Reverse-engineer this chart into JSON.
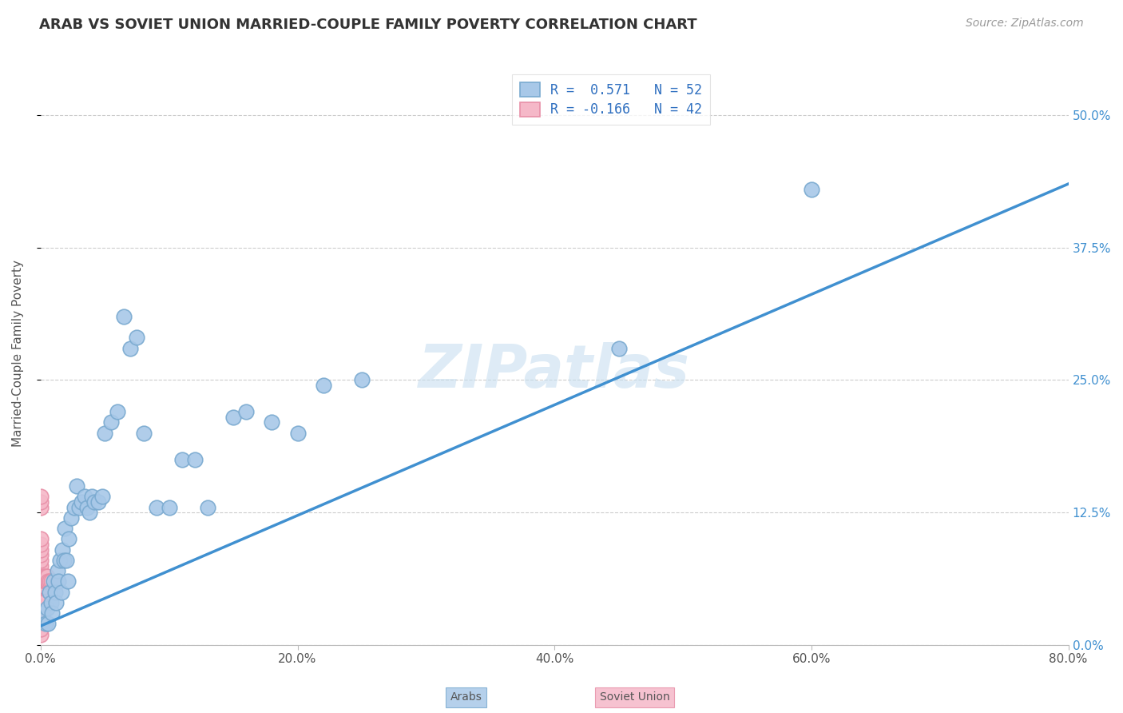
{
  "title": "ARAB VS SOVIET UNION MARRIED-COUPLE FAMILY POVERTY CORRELATION CHART",
  "source": "Source: ZipAtlas.com",
  "ylabel": "Married-Couple Family Poverty",
  "R_arab": 0.571,
  "N_arab": 52,
  "R_soviet": -0.166,
  "N_soviet": 42,
  "arab_color": "#a8c8e8",
  "arab_edge": "#7aaad0",
  "soviet_color": "#f5b8c8",
  "soviet_edge": "#e890a8",
  "line_color": "#4090d0",
  "arab_x": [
    0.002,
    0.004,
    0.005,
    0.006,
    0.007,
    0.008,
    0.009,
    0.01,
    0.011,
    0.012,
    0.013,
    0.014,
    0.015,
    0.016,
    0.017,
    0.018,
    0.019,
    0.02,
    0.021,
    0.022,
    0.024,
    0.026,
    0.028,
    0.03,
    0.032,
    0.034,
    0.036,
    0.038,
    0.04,
    0.042,
    0.045,
    0.048,
    0.05,
    0.055,
    0.06,
    0.065,
    0.07,
    0.075,
    0.08,
    0.09,
    0.1,
    0.11,
    0.12,
    0.13,
    0.15,
    0.16,
    0.18,
    0.2,
    0.22,
    0.25,
    0.45,
    0.6
  ],
  "arab_y": [
    0.03,
    0.02,
    0.035,
    0.02,
    0.05,
    0.04,
    0.03,
    0.06,
    0.05,
    0.04,
    0.07,
    0.06,
    0.08,
    0.05,
    0.09,
    0.08,
    0.11,
    0.08,
    0.06,
    0.1,
    0.12,
    0.13,
    0.15,
    0.13,
    0.135,
    0.14,
    0.13,
    0.125,
    0.14,
    0.135,
    0.135,
    0.14,
    0.2,
    0.21,
    0.22,
    0.31,
    0.28,
    0.29,
    0.2,
    0.13,
    0.13,
    0.175,
    0.175,
    0.13,
    0.215,
    0.22,
    0.21,
    0.2,
    0.245,
    0.25,
    0.28,
    0.43
  ],
  "soviet_x": [
    0.0,
    0.0,
    0.0,
    0.0,
    0.0,
    0.0,
    0.0,
    0.0,
    0.0,
    0.0,
    0.0,
    0.0,
    0.001,
    0.001,
    0.001,
    0.001,
    0.001,
    0.002,
    0.002,
    0.002,
    0.002,
    0.003,
    0.003,
    0.004,
    0.004,
    0.005,
    0.005,
    0.006,
    0.007,
    0.008,
    0.0,
    0.0,
    0.0,
    0.0,
    0.0,
    0.0,
    0.0,
    0.0,
    0.0,
    0.0,
    0.0,
    0.0
  ],
  "soviet_y": [
    0.13,
    0.135,
    0.14,
    0.05,
    0.055,
    0.06,
    0.065,
    0.07,
    0.075,
    0.08,
    0.085,
    0.09,
    0.04,
    0.045,
    0.05,
    0.055,
    0.06,
    0.05,
    0.055,
    0.06,
    0.065,
    0.055,
    0.06,
    0.06,
    0.065,
    0.06,
    0.065,
    0.06,
    0.06,
    0.06,
    0.03,
    0.02,
    0.025,
    0.015,
    0.01,
    0.035,
    0.04,
    0.02,
    0.025,
    0.015,
    0.095,
    0.1
  ],
  "line_x0": 0.0,
  "line_y0": 0.018,
  "line_x1": 0.8,
  "line_y1": 0.435,
  "xlim": [
    0.0,
    0.8
  ],
  "ylim": [
    0.0,
    0.55
  ],
  "xticks": [
    0.0,
    0.2,
    0.4,
    0.6,
    0.8
  ],
  "xtick_labels": [
    "0.0%",
    "20.0%",
    "40.0%",
    "60.0%",
    "80.0%"
  ],
  "ytick_vals": [
    0.0,
    0.125,
    0.25,
    0.375,
    0.5
  ],
  "ytick_labels_right": [
    "0.0%",
    "12.5%",
    "25.0%",
    "37.5%",
    "50.0%"
  ],
  "background_color": "#ffffff",
  "grid_color": "#cccccc",
  "watermark": "ZIPatlas",
  "marker_size": 180,
  "title_fontsize": 13,
  "axis_fontsize": 11,
  "legend_fontsize": 12
}
